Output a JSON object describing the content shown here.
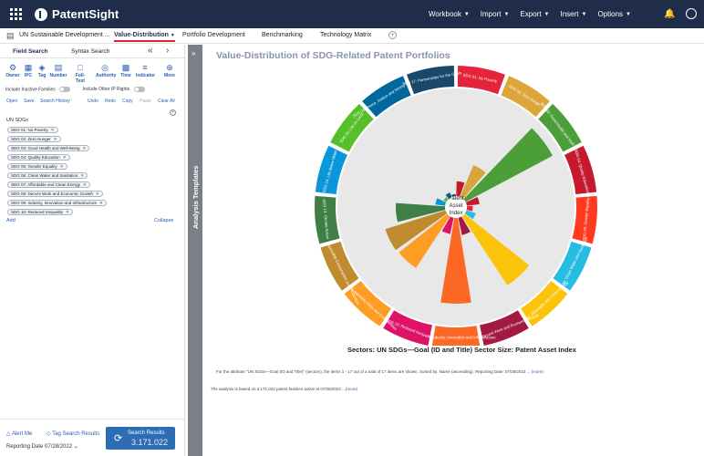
{
  "app": {
    "name": "PatentSight"
  },
  "topmenu": [
    {
      "label": "Workbook"
    },
    {
      "label": "Import"
    },
    {
      "label": "Export"
    },
    {
      "label": "Insert"
    },
    {
      "label": "Options"
    }
  ],
  "tabs": [
    {
      "label": "UN Sustainable Development ..."
    },
    {
      "label": "Value-Distribution"
    },
    {
      "label": "Portfolio Development"
    },
    {
      "label": "Benchmarking"
    },
    {
      "label": "Technology Matrix"
    }
  ],
  "leftpanel": {
    "tab_field": "Field Search",
    "tab_syntax": "Syntax Search",
    "tools": [
      {
        "label": "Owner"
      },
      {
        "label": "IPC"
      },
      {
        "label": "Tag"
      },
      {
        "label": "Number"
      },
      {
        "label": "Full-Text"
      },
      {
        "label": "Authority"
      },
      {
        "label": "Time"
      },
      {
        "label": "Indicator"
      },
      {
        "label": "More"
      }
    ],
    "toggle_inactive": "Include Inactive Families",
    "toggle_other_ip": "Include Other IP Rights",
    "actions": {
      "open": "Open",
      "save": "Save",
      "history": "Search History",
      "undo": "Undo",
      "redo": "Redo",
      "copy": "Copy",
      "paste": "Paste",
      "clear": "Clear All"
    },
    "field_label": "UN SDGs",
    "chips": [
      "SDG 01: No Poverty",
      "SDG 02: Zero Hunger",
      "SDG 03: Good Health and Well-Being",
      "SDG 04: Quality Education",
      "SDG 05: Gender Equality",
      "SDG 06: Clean Water and Sanitation",
      "SDG 07: Affordable and Clean Energy",
      "SDG 08: Decent Work and Economic Growth",
      "SDG 09: Industry, Innovation and Infrastructure",
      "SDG 10: Reduced Inequality"
    ],
    "add": "Add",
    "collapse": "Collapse",
    "alert_me": "Alert Me",
    "tag_results": "Tag Search Results",
    "reporting_label": "Reporting Date",
    "reporting_date": "07/28/2022",
    "search_button": "Search Results",
    "search_count": "3.171.022"
  },
  "strip": {
    "label": "Analysis Templates"
  },
  "chart_data": {
    "type": "polar-bar",
    "title": "Value-Distribution of SDG-Related Patent Portfolios",
    "center_label": [
      "Patent",
      "Asset",
      "Index"
    ],
    "sectors": [
      {
        "label": "SDG 01: No Poverty",
        "ring_color": "#e5243b"
      },
      {
        "label": "SDG 02: Zero Hunger",
        "ring_color": "#dda63a"
      },
      {
        "label": "SDG 03: Good Health and Well-Being",
        "ring_color": "#4c9f38"
      },
      {
        "label": "SDG 04: Quality Education",
        "ring_color": "#c5192d"
      },
      {
        "label": "SDG 05: Gender Equality",
        "ring_color": "#ff3a21"
      },
      {
        "label": "SDG 06: Clean Water and Sanitation",
        "ring_color": "#26bde2"
      },
      {
        "label": "SDG 07: Affordable and Clean Energy",
        "ring_color": "#fcc30b"
      },
      {
        "label": "SDG 08: Decent Work and Economic Growth",
        "ring_color": "#a21942"
      },
      {
        "label": "SDG 09: Industry, Innovation and Infrastructure",
        "ring_color": "#fd6925"
      },
      {
        "label": "SDG 10: Reduced Inequality",
        "ring_color": "#dd1367"
      },
      {
        "label": "SDG 11: Sustainable Cities and Communities",
        "ring_color": "#fd9d24"
      },
      {
        "label": "SDG 12: Responsible Consumption and Production",
        "ring_color": "#bf8b2e"
      },
      {
        "label": "SDG 13: Climate Action",
        "ring_color": "#3f7e44"
      },
      {
        "label": "SDG 14: Life Below Water",
        "ring_color": "#0a97d9"
      },
      {
        "label": "SDG 15: Life on Land",
        "ring_color": "#56c02b"
      },
      {
        "label": "SDG 16: Peace, Justice and Strong Institutions",
        "ring_color": "#00689d"
      },
      {
        "label": "SDG 17: Partnerships for the Goals",
        "ring_color": "#19486a"
      }
    ],
    "values": [
      0.15,
      0.35,
      1.0,
      0.13,
      0.06,
      0.1,
      0.84,
      0.18,
      0.87,
      0.17,
      0.63,
      0.64,
      0.5,
      0.1,
      0.03,
      0.05,
      0.02
    ],
    "bar_colors": [
      "#c5192d",
      "#d9a43a",
      "#4c9f38",
      "#c5192d",
      "#e5243b",
      "#26bde2",
      "#fcc30b",
      "#a21942",
      "#fd6925",
      "#dd1367",
      "#fd9d24",
      "#bf8b2e",
      "#3f7e44",
      "#0a97d9",
      "#56c02b",
      "#00689d",
      "#19486a"
    ],
    "caption": "Sectors:  UN SDGs—Goal (ID and Title)    Sector Size:  Patent Asset Index",
    "footnote": "For the attribute \"UN SDGs—Goal (ID and Title)\" (sectors), the items 1 - 17 out of a total of 17 items are shown. Sorted by: Name (ascending). Reporting Date: 07/28/2022 ...",
    "footnote_more": "(more)",
    "footnote2": "The analysis is based on 3.171.022 patent families active at 07/28/2022 ...",
    "footnote2_more": "(more)"
  }
}
